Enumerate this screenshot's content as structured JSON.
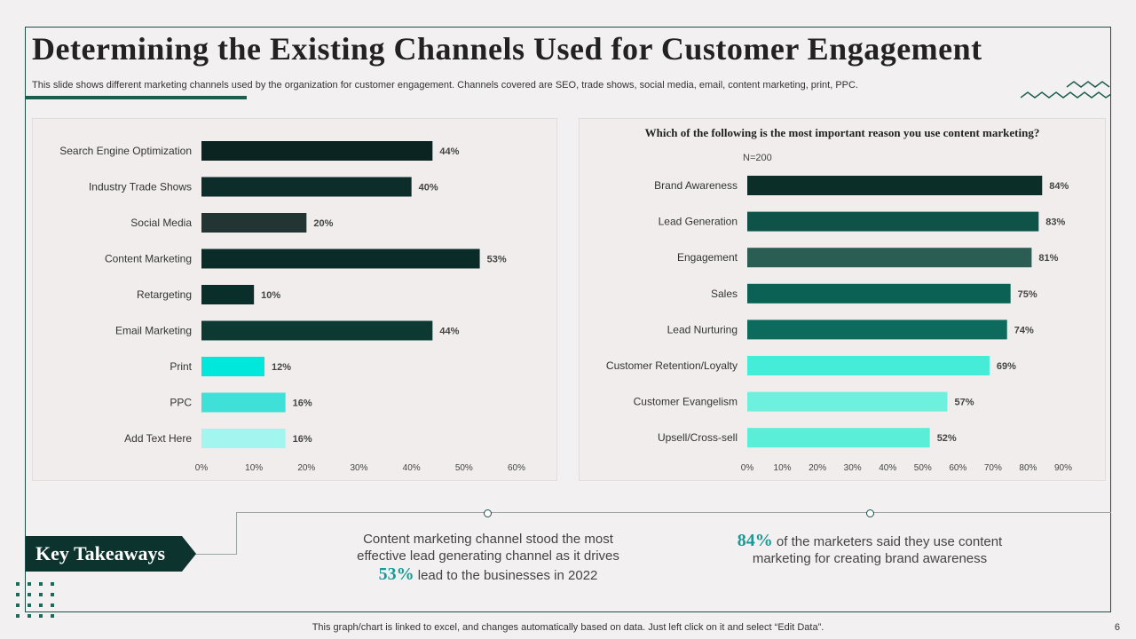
{
  "slide": {
    "title": "Determining the Existing Channels Used for Customer Engagement",
    "subtitle": "This slide shows different marketing channels used by the organization for customer engagement. Channels covered are SEO, trade shows, social media, email, content marketing, print, PPC.",
    "footer": "This graph/chart is linked to excel,  and changes automatically based on data. Just left click on it and select “Edit Data”.",
    "page_number": "6",
    "accent_color": "#1b5e4f"
  },
  "takeaways": {
    "heading": "Key Takeaways",
    "item1_line1": "Content marketing channel stood the most",
    "item1_line2": "effective lead generating channel as it drives",
    "item1_pct": "53%",
    "item1_line3": " lead to the businesses in 2022",
    "item2_pct": "84%",
    "item2_line1": " of the marketers said they use content",
    "item2_line2": "marketing for creating brand awareness"
  },
  "chart_data": [
    {
      "type": "bar",
      "orientation": "horizontal",
      "title": "",
      "categories": [
        "Search Engine Optimization",
        "Industry Trade Shows",
        "Social Media",
        "Content Marketing",
        "Retargeting",
        "Email Marketing",
        "Print",
        "PPC",
        "Add Text Here"
      ],
      "values": [
        44,
        40,
        20,
        53,
        10,
        44,
        12,
        16,
        16
      ],
      "value_labels": [
        "44%",
        "40%",
        "20%",
        "53%",
        "10%",
        "44%",
        "12%",
        "16%",
        "16%"
      ],
      "colors": [
        "#0b2421",
        "#0c2d29",
        "#223532",
        "#0a2c28",
        "#0a2e2a",
        "#0c3a33",
        "#00e8dc",
        "#3ee0d8",
        "#a3f5f0"
      ],
      "xlim": [
        0,
        60
      ],
      "xticks": [
        "0%",
        "10%",
        "20%",
        "30%",
        "40%",
        "50%",
        "60%"
      ],
      "grid": false
    },
    {
      "type": "bar",
      "orientation": "horizontal",
      "title": "Which of the following is the most important reason you use content marketing?",
      "note": "N=200",
      "categories": [
        "Brand Awareness",
        "Lead Generation",
        "Engagement",
        "Sales",
        "Lead Nurturing",
        "Customer Retention/Loyalty",
        "Customer Evangelism",
        "Upsell/Cross-sell"
      ],
      "values": [
        84,
        83,
        81,
        75,
        74,
        69,
        57,
        52
      ],
      "value_labels": [
        "84%",
        "83%",
        "81%",
        "75%",
        "74%",
        "69%",
        "57%",
        "52%"
      ],
      "colors": [
        "#0c2e29",
        "#0f5247",
        "#2a5e55",
        "#0b6154",
        "#0c6b5c",
        "#45ecd8",
        "#6ef0df",
        "#5aeed9"
      ],
      "xlim": [
        0,
        90
      ],
      "xticks": [
        "0%",
        "10%",
        "20%",
        "30%",
        "40%",
        "50%",
        "60%",
        "70%",
        "80%",
        "90%"
      ],
      "grid": false
    }
  ]
}
